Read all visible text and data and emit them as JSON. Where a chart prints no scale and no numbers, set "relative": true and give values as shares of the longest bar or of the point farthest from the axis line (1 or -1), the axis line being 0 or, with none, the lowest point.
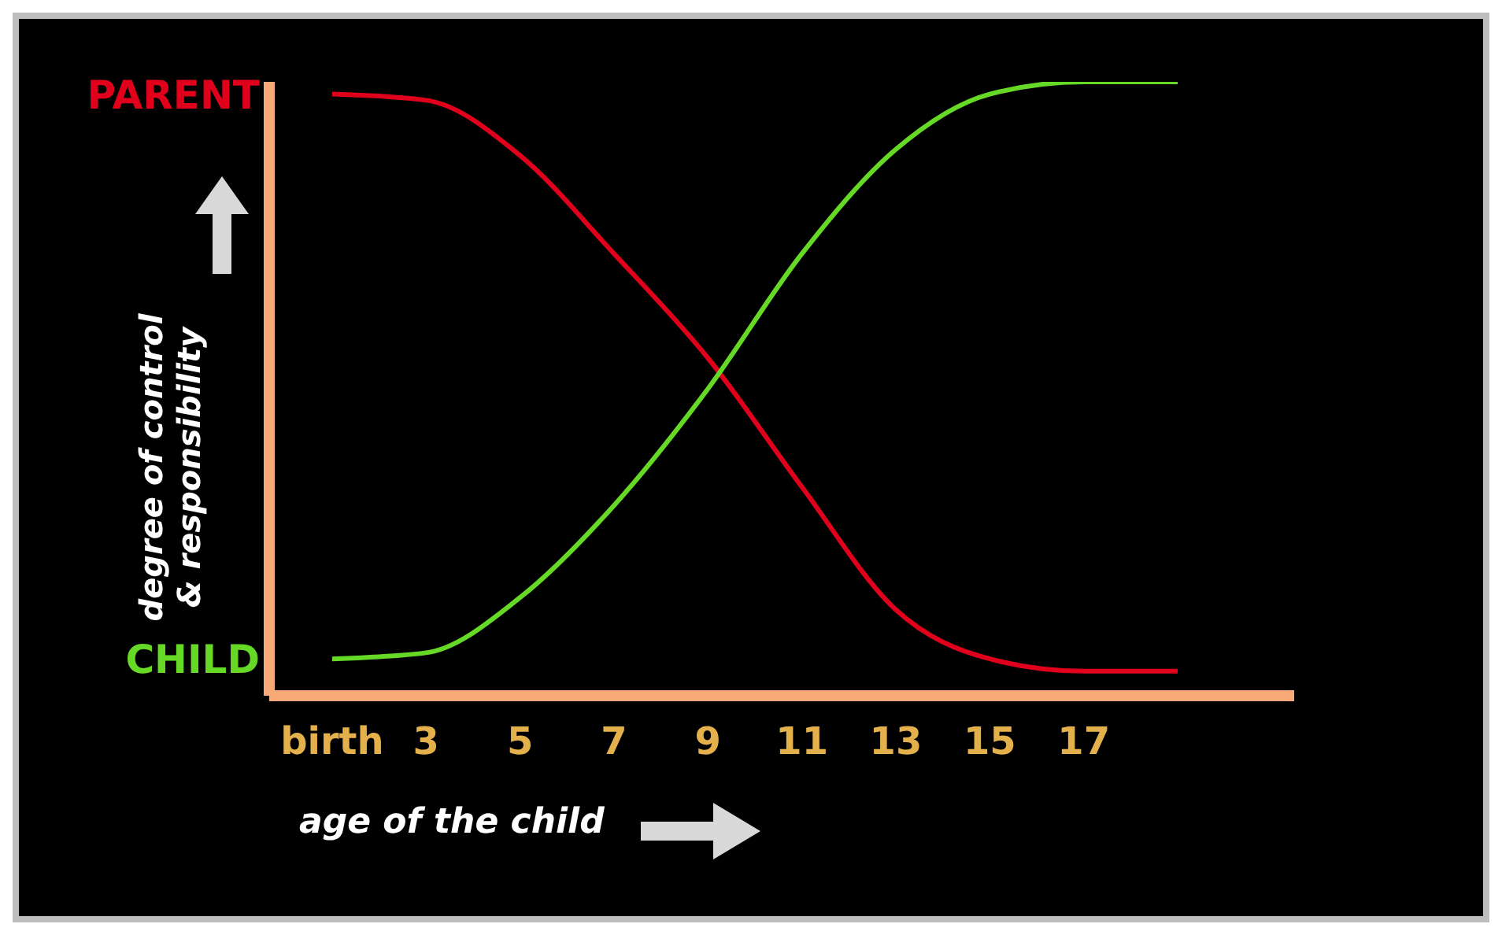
{
  "chart_data": {
    "type": "line",
    "relative": true,
    "xlabel": "age of the child",
    "ylabel": "degree of control\n& responsibility",
    "categories": [
      "birth",
      "3",
      "5",
      "7",
      "9",
      "11",
      "13",
      "15",
      "17",
      null
    ],
    "series": [
      {
        "name": "PARENT",
        "color": "#e0001b",
        "values": [
          0.98,
          0.97,
          0.88,
          0.72,
          0.55,
          0.34,
          0.14,
          0.06,
          0.04,
          0.04
        ]
      },
      {
        "name": "CHILD",
        "color": "#66d926",
        "values": [
          0.06,
          0.07,
          0.16,
          0.31,
          0.5,
          0.72,
          0.89,
          0.98,
          1,
          1
        ]
      }
    ],
    "marker": "none",
    "line_style": "solid"
  }
}
